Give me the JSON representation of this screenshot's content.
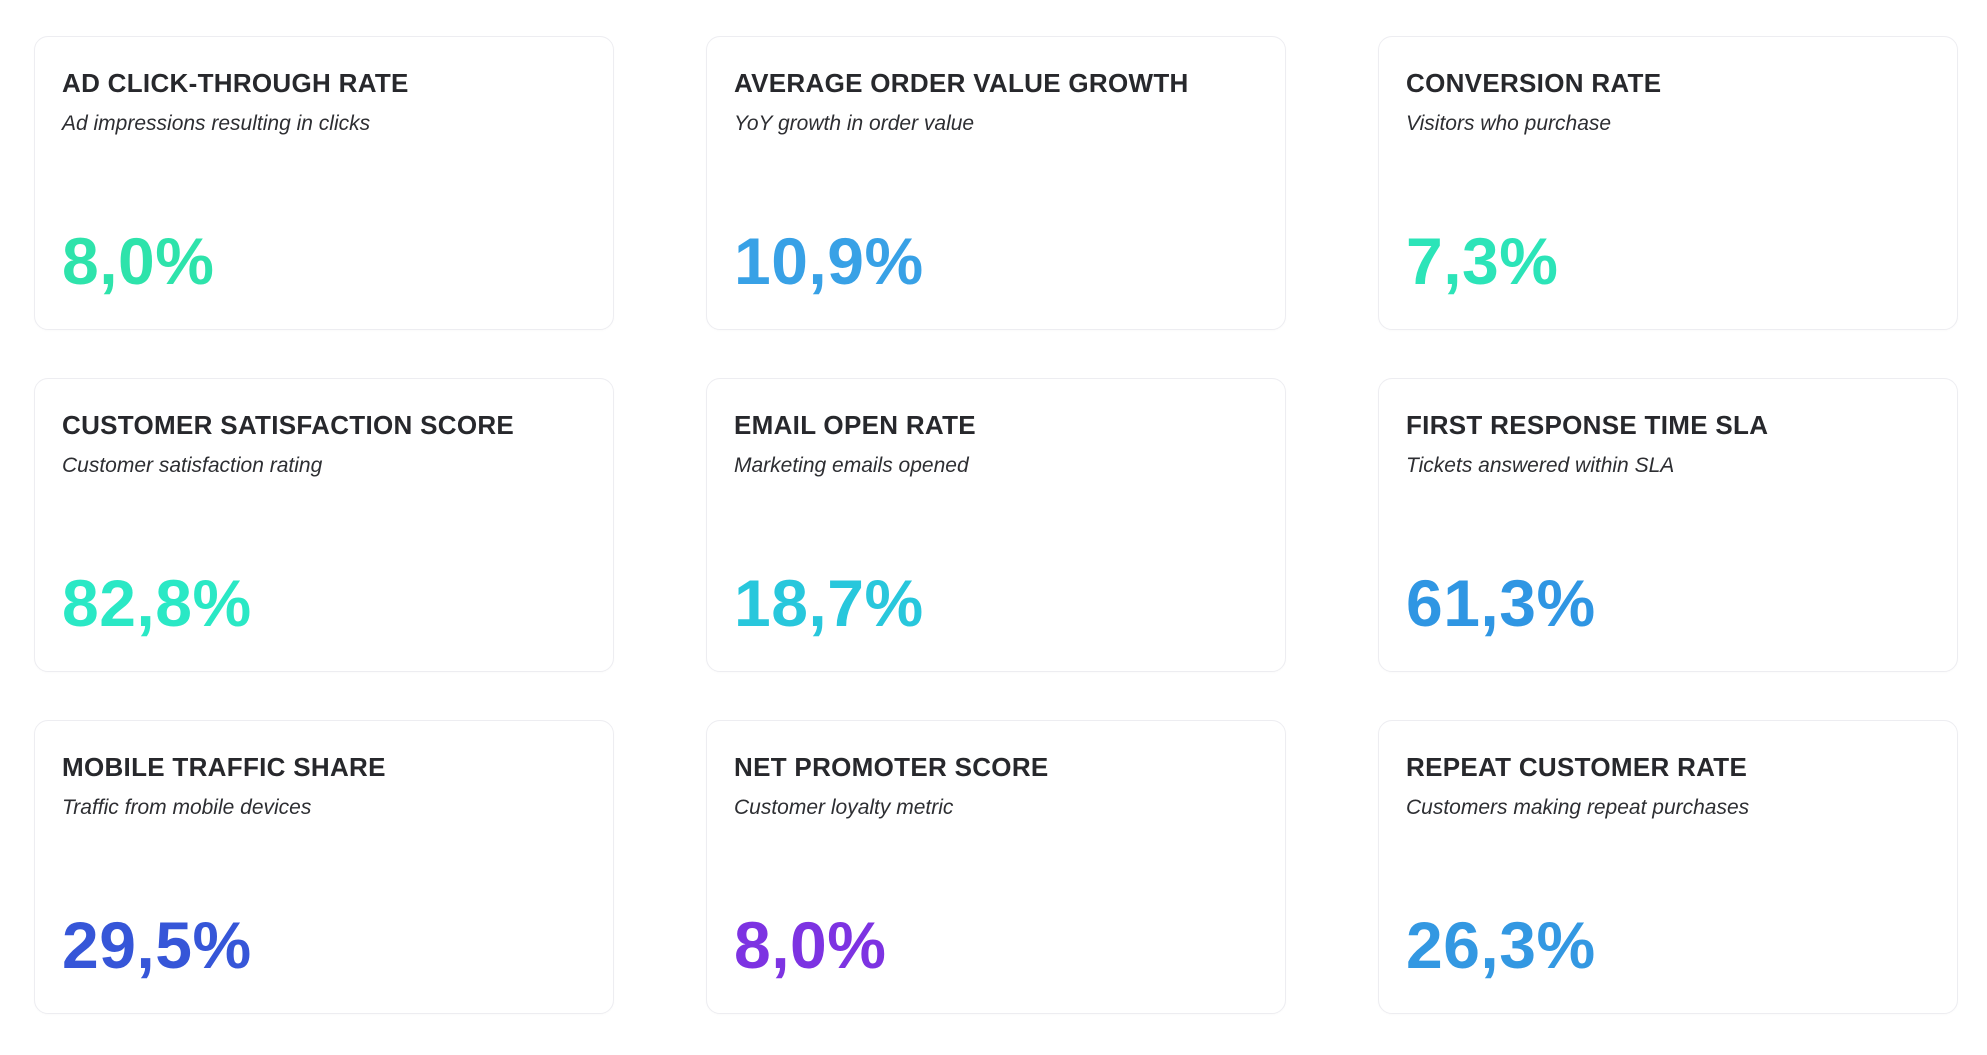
{
  "cards": [
    {
      "title": "AD CLICK-THROUGH RATE",
      "subtitle": "Ad impressions resulting in clicks",
      "value": "8,0%",
      "color": "#2ee3ab"
    },
    {
      "title": "AVERAGE ORDER VALUE GROWTH",
      "subtitle": "YoY growth in order value",
      "value": "10,9%",
      "color": "#38a1e6"
    },
    {
      "title": "CONVERSION RATE",
      "subtitle": "Visitors who purchase",
      "value": "7,3%",
      "color": "#2ce4b8"
    },
    {
      "title": "CUSTOMER SATISFACTION SCORE",
      "subtitle": "Customer satisfaction rating",
      "value": "82,8%",
      "color": "#2ae8c5"
    },
    {
      "title": "EMAIL OPEN RATE",
      "subtitle": "Marketing emails opened",
      "value": "18,7%",
      "color": "#28c7dc"
    },
    {
      "title": "FIRST RESPONSE TIME SLA",
      "subtitle": "Tickets answered within SLA",
      "value": "61,3%",
      "color": "#2f96e3"
    },
    {
      "title": "MOBILE TRAFFIC SHARE",
      "subtitle": "Traffic from mobile devices",
      "value": "29,5%",
      "color": "#3656d8"
    },
    {
      "title": "NET PROMOTER SCORE",
      "subtitle": "Customer loyalty metric",
      "value": "8,0%",
      "color": "#7d33e2"
    },
    {
      "title": "REPEAT CUSTOMER RATE",
      "subtitle": "Customers making repeat purchases",
      "value": "26,3%",
      "color": "#3398e2"
    }
  ]
}
